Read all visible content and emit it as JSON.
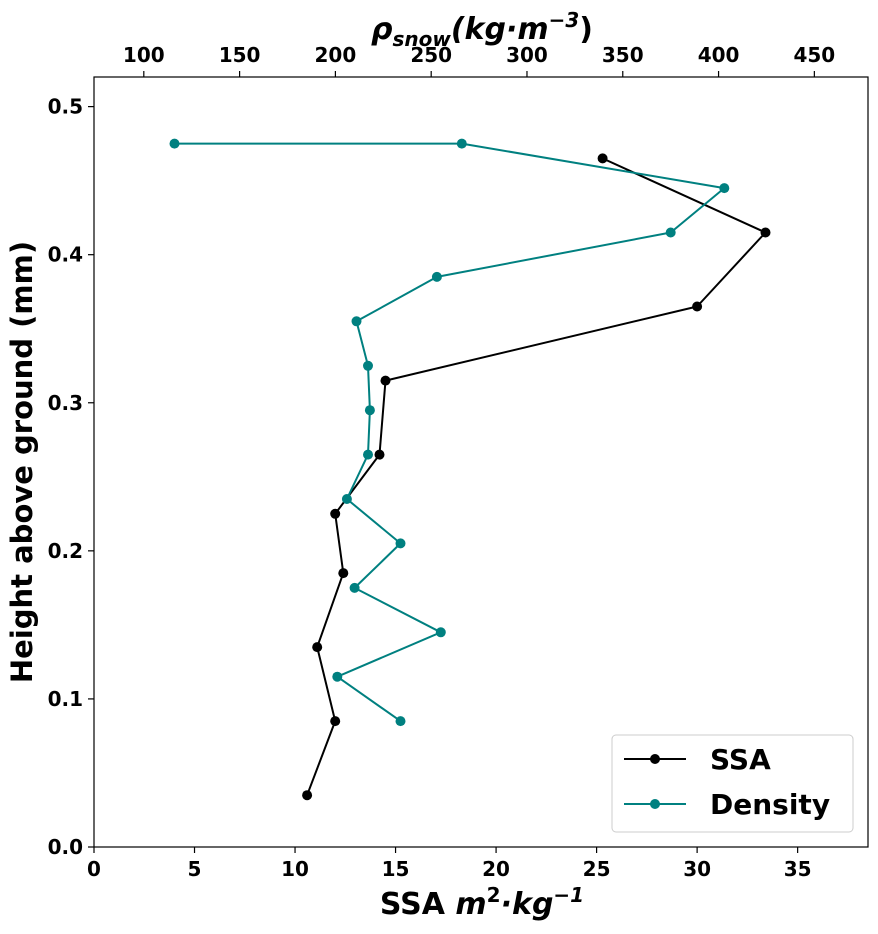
{
  "chart_data": {
    "type": "line",
    "xlabel": "SSA m²·kg⁻¹",
    "xlabel_parts": {
      "prefix": "SSA ",
      "base": "m",
      "sup1": "2",
      "mid": "·kg",
      "sup2": "−1"
    },
    "x2label": "ρsnow(kg·m⁻³)",
    "x2label_parts": {
      "rho": "ρ",
      "sub": "snow",
      "mid": "(kg·m",
      "sup": "−3",
      "close": ")"
    },
    "ylabel": "Height above ground (mm)",
    "xlim": [
      0,
      38.5
    ],
    "x2lim": [
      74,
      478
    ],
    "ylim": [
      0,
      0.52
    ],
    "xticks": [
      "0",
      "5",
      "10",
      "15",
      "20",
      "25",
      "30",
      "35"
    ],
    "x2ticks": [
      "100",
      "150",
      "200",
      "250",
      "300",
      "350",
      "400",
      "450"
    ],
    "yticks": [
      "0.0",
      "0.1",
      "0.2",
      "0.3",
      "0.4",
      "0.5"
    ],
    "legend_position": "lower-right",
    "grid": false,
    "series": [
      {
        "name": "SSA",
        "axis": "bottom",
        "color": "#000000",
        "x": [
          10.6,
          12.0,
          11.1,
          12.4,
          12.0,
          14.2,
          14.5,
          30.0,
          33.4,
          25.3
        ],
        "y": [
          0.035,
          0.085,
          0.135,
          0.185,
          0.225,
          0.265,
          0.315,
          0.365,
          0.415,
          0.465
        ]
      },
      {
        "name": "Density",
        "axis": "top",
        "color": "#008080",
        "x": [
          234,
          201,
          255,
          210,
          234,
          206,
          217,
          218,
          217,
          211,
          253,
          375,
          403,
          266,
          116
        ],
        "y": [
          0.085,
          0.115,
          0.145,
          0.175,
          0.205,
          0.235,
          0.265,
          0.295,
          0.325,
          0.355,
          0.385,
          0.415,
          0.445,
          0.475,
          0.475
        ]
      }
    ]
  }
}
